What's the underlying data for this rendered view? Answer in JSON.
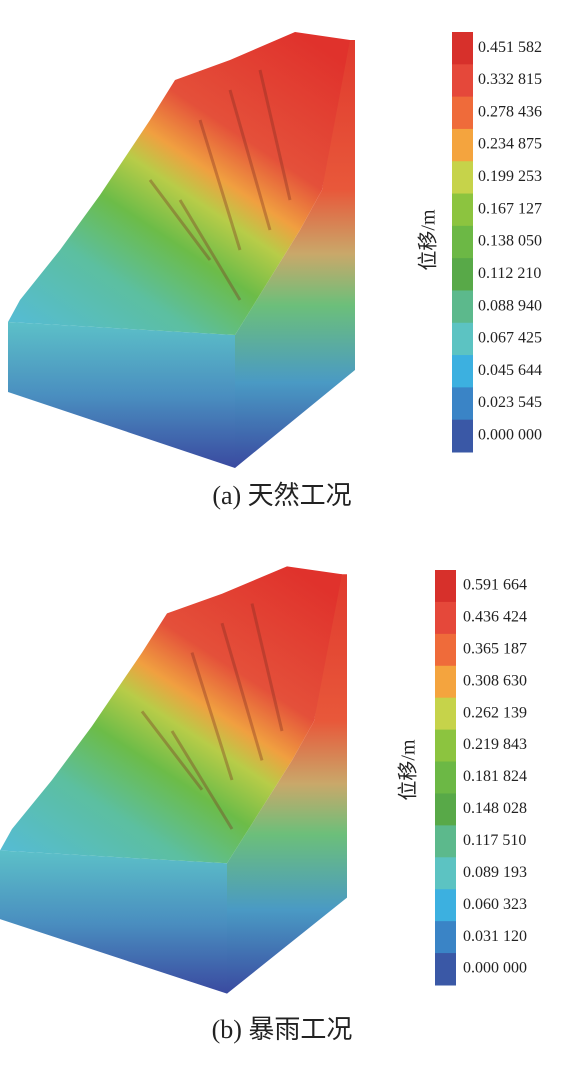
{
  "panels": [
    {
      "caption": "(a) 天然工况",
      "legend_title": "位移/m",
      "legend_labels": [
        "0.451 582",
        "0.332 815",
        "0.278 436",
        "0.234 875",
        "0.199 253",
        "0.167 127",
        "0.138 050",
        "0.112 210",
        "0.088 940",
        "0.067 425",
        "0.045 644",
        "0.023 545",
        "0.000 000"
      ]
    },
    {
      "caption": "(b) 暴雨工况",
      "legend_title": "位移/m",
      "legend_labels": [
        "0.591 664",
        "0.436 424",
        "0.365 187",
        "0.308 630",
        "0.262 139",
        "0.219 843",
        "0.181 824",
        "0.148 028",
        "0.117 510",
        "0.089 193",
        "0.060 323",
        "0.031 120",
        "0.000 000"
      ]
    }
  ]
}
